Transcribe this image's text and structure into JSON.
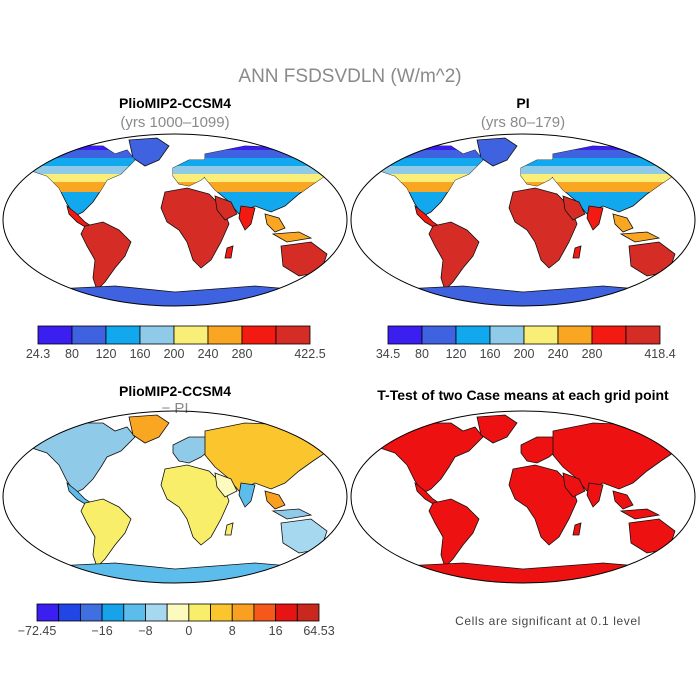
{
  "figure": {
    "title": "ANN FSDSVDLN (W/m^2)"
  },
  "panels": [
    {
      "id": "plio",
      "title": "PlioMIP2-CCSM4",
      "subtitle": "(yrs 1000–1099)",
      "field": "absolute"
    },
    {
      "id": "pi",
      "title": "PI",
      "subtitle": "(yrs 80–179)",
      "field": "absolute"
    },
    {
      "id": "diff",
      "title": "PlioMIP2-CCSM4",
      "subtitle": "− PI",
      "field": "difference"
    },
    {
      "id": "ttest",
      "title": "T-Test of two Case means at each grid point",
      "subtitle": "",
      "field": "significance",
      "note": "Cells are significant at 0.1 level"
    }
  ],
  "colorbars": [
    {
      "id": "plio",
      "colors": [
        "#3b1ef0",
        "#3f62e0",
        "#12a8ee",
        "#8fcbe8",
        "#f9ee78",
        "#f9a623",
        "#f31a12",
        "#d52c25"
      ],
      "labels": [
        "24.3",
        "80",
        "120",
        "160",
        "200",
        "240",
        "280",
        "",
        "422.5"
      ]
    },
    {
      "id": "pi",
      "colors": [
        "#3b1ef0",
        "#3f62e0",
        "#12a8ee",
        "#8fcbe8",
        "#f9ee78",
        "#f9a623",
        "#f31a12",
        "#d52c25"
      ],
      "labels": [
        "34.5",
        "80",
        "120",
        "160",
        "200",
        "240",
        "280",
        "",
        "418.4"
      ]
    },
    {
      "id": "diff",
      "colors": [
        "#3b1ef0",
        "#2046e6",
        "#3f6fe0",
        "#16a3ea",
        "#5cbcec",
        "#a6d9f0",
        "#fdfac0",
        "#f9ee6a",
        "#fbc52e",
        "#f9a021",
        "#f5581a",
        "#e61412",
        "#c9281f"
      ],
      "labels": [
        "−72.45",
        "",
        "",
        "−16",
        "",
        "−8",
        "",
        "0",
        "",
        "8",
        "",
        "16",
        "",
        "64.53"
      ]
    }
  ]
}
